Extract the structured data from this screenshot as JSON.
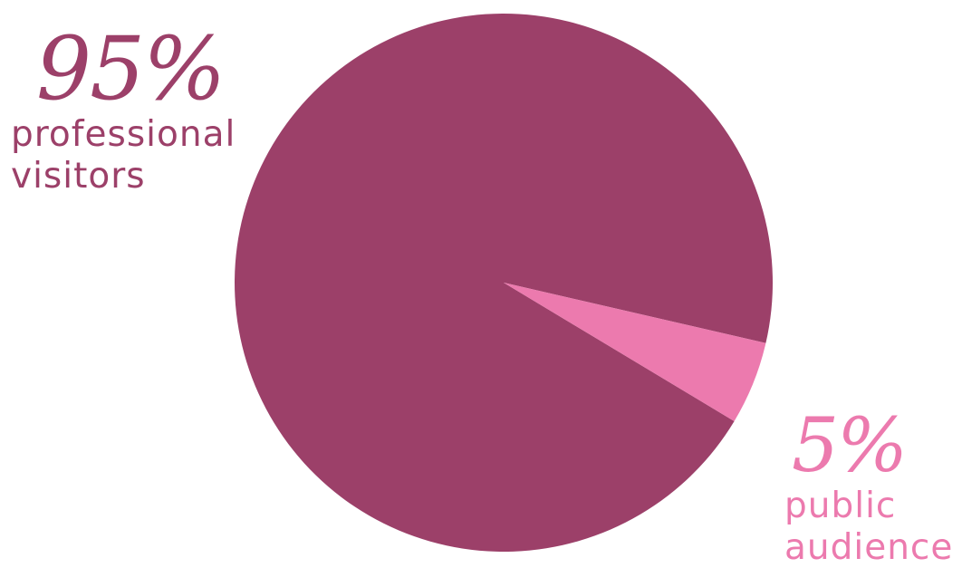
{
  "chart_data": {
    "type": "pie",
    "slices": [
      {
        "name": "professional visitors",
        "value": 95,
        "percent_label": "95%",
        "label_lines": [
          "professional",
          "visitors"
        ],
        "color": "#9c4069"
      },
      {
        "name": "public audience",
        "value": 5,
        "percent_label": "5%",
        "label_lines": [
          "public",
          "audience"
        ],
        "color": "#ec7aae"
      }
    ],
    "title": "",
    "legend": "none"
  }
}
